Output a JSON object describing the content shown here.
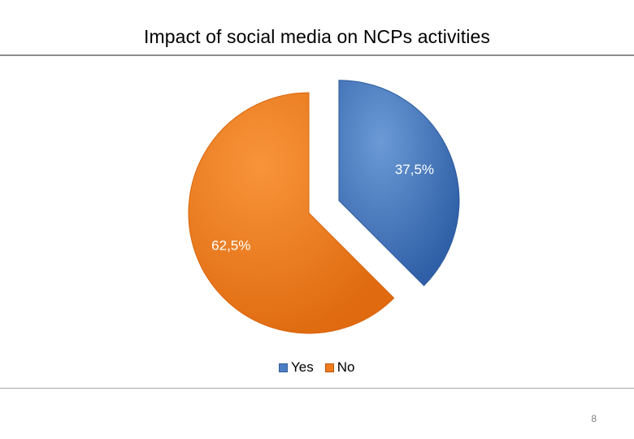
{
  "slide": {
    "title": "Impact of social media on NCPs activities",
    "page_number": "8"
  },
  "colors": {
    "yes": "#4a7ec4",
    "no": "#f07a1c",
    "title_rule": "#8c8c8c"
  },
  "chart_data": {
    "type": "pie",
    "title": "",
    "categories": [
      "Yes",
      "No"
    ],
    "values": [
      37.5,
      62.5
    ],
    "data_labels": [
      "37,5%",
      "62,5%"
    ],
    "exploded": true,
    "start_angle_deg": 0,
    "legend": {
      "position": "bottom",
      "entries": [
        "Yes",
        "No"
      ]
    }
  }
}
